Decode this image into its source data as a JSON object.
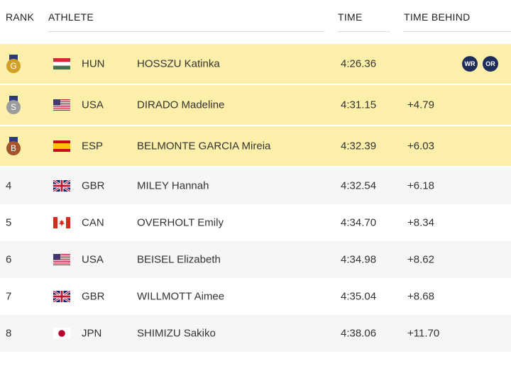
{
  "table": {
    "columns": [
      "RANK",
      "ATHLETE",
      "TIME",
      "TIME BEHIND"
    ],
    "rows": [
      {
        "medal": "G",
        "country": "HUN",
        "athlete": "HOSSZU Katinka",
        "time": "4:26.36",
        "badges": [
          "WR",
          "OR"
        ]
      },
      {
        "medal": "S",
        "country": "USA",
        "athlete": "DIRADO Madeline",
        "time": "4:31.15",
        "behind": "+4.79"
      },
      {
        "medal": "B",
        "country": "ESP",
        "athlete": "BELMONTE GARCIA Mireia",
        "time": "4:32.39",
        "behind": "+6.03"
      },
      {
        "rank": "4",
        "country": "GBR",
        "athlete": "MILEY Hannah",
        "time": "4:32.54",
        "behind": "+6.18"
      },
      {
        "rank": "5",
        "country": "CAN",
        "athlete": "OVERHOLT Emily",
        "time": "4:34.70",
        "behind": "+8.34"
      },
      {
        "rank": "6",
        "country": "USA",
        "athlete": "BEISEL Elizabeth",
        "time": "4:34.98",
        "behind": "+8.62"
      },
      {
        "rank": "7",
        "country": "GBR",
        "athlete": "WILLMOTT Aimee",
        "time": "4:35.04",
        "behind": "+8.68"
      },
      {
        "rank": "8",
        "country": "JPN",
        "athlete": "SHIMIZU Sakiko",
        "time": "4:38.06",
        "behind": "+11.70"
      }
    ]
  }
}
